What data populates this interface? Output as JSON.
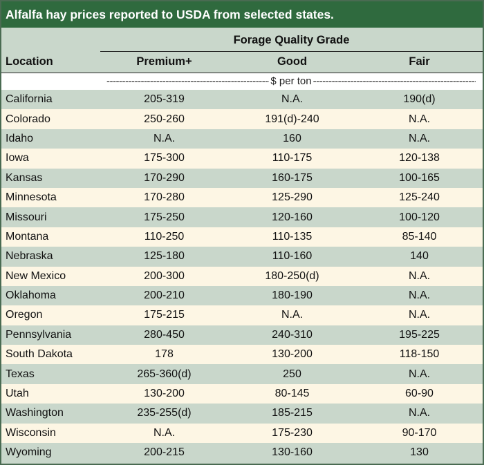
{
  "title": "Alfalfa hay prices reported to USDA from selected states.",
  "header": {
    "group_label": "Forage Quality Grade",
    "location_label": "Location",
    "columns": [
      "Premium+",
      "Good",
      "Fair"
    ]
  },
  "unit_label": "$ per ton",
  "rows": [
    {
      "location": "California",
      "premium": "205-319",
      "good": "N.A.",
      "fair": "190(d)"
    },
    {
      "location": "Colorado",
      "premium": "250-260",
      "good": "191(d)-240",
      "fair": "N.A."
    },
    {
      "location": "Idaho",
      "premium": "N.A.",
      "good": "160",
      "fair": "N.A."
    },
    {
      "location": "Iowa",
      "premium": "175-300",
      "good": "110-175",
      "fair": "120-138"
    },
    {
      "location": "Kansas",
      "premium": "170-290",
      "good": "160-175",
      "fair": "100-165"
    },
    {
      "location": "Minnesota",
      "premium": "170-280",
      "good": "125-290",
      "fair": "125-240"
    },
    {
      "location": "Missouri",
      "premium": "175-250",
      "good": "120-160",
      "fair": "100-120"
    },
    {
      "location": "Montana",
      "premium": "110-250",
      "good": "110-135",
      "fair": "85-140"
    },
    {
      "location": "Nebraska",
      "premium": "125-180",
      "good": "110-160",
      "fair": "140"
    },
    {
      "location": "New Mexico",
      "premium": "200-300",
      "good": "180-250(d)",
      "fair": "N.A."
    },
    {
      "location": "Oklahoma",
      "premium": "200-210",
      "good": "180-190",
      "fair": "N.A."
    },
    {
      "location": "Oregon",
      "premium": "175-215",
      "good": "N.A.",
      "fair": "N.A."
    },
    {
      "location": "Pennsylvania",
      "premium": "280-450",
      "good": "240-310",
      "fair": "195-225"
    },
    {
      "location": "South Dakota",
      "premium": "178",
      "good": "130-200",
      "fair": "118-150"
    },
    {
      "location": "Texas",
      "premium": "265-360(d)",
      "good": "250",
      "fair": "N.A."
    },
    {
      "location": "Utah",
      "premium": "130-200",
      "good": "80-145",
      "fair": "60-90"
    },
    {
      "location": "Washington",
      "premium": "235-255(d)",
      "good": "185-215",
      "fair": "N.A."
    },
    {
      "location": "Wisconsin",
      "premium": "N.A.",
      "good": "175-230",
      "fair": "90-170"
    },
    {
      "location": "Wyoming",
      "premium": "200-215",
      "good": "130-160",
      "fair": "130"
    }
  ]
}
